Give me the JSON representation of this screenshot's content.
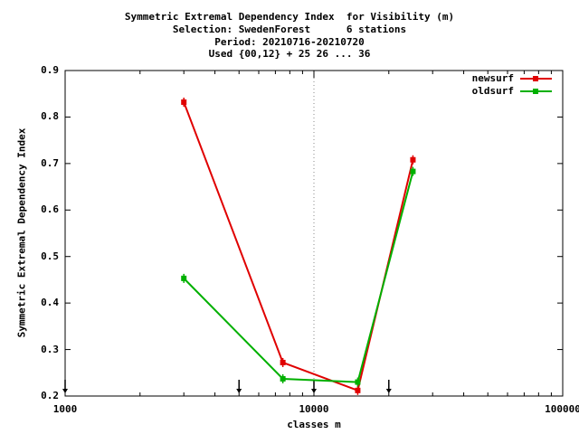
{
  "title_lines": [
    "Symmetric Extremal Dependency Index  for Visibility (m)",
    "Selection: SwedenForest      6 stations",
    "Period: 20210716-20210720",
    "Used {00,12} + 25 26 ... 36"
  ],
  "chart_data": {
    "type": "line",
    "title": "Symmetric Extremal Dependency Index  for Visibility (m)",
    "xlabel": "classes m",
    "ylabel": "Symmetric Extremal Dependency Index",
    "x_scale": "log",
    "xlim": [
      1000,
      100000
    ],
    "ylim": [
      0.2,
      0.9
    ],
    "x_ticks": [
      1000,
      10000,
      100000
    ],
    "x_tick_labels": [
      "1000",
      "10000",
      "100000"
    ],
    "y_ticks": [
      0.2,
      0.3,
      0.4,
      0.5,
      0.6,
      0.7,
      0.8,
      0.9
    ],
    "y_tick_labels": [
      "0.2",
      "0.3",
      "0.4",
      "0.5",
      "0.6",
      "0.7",
      "0.8",
      "0.9"
    ],
    "grid": "dotted at x=10000 and y=0.9",
    "legend_position": "top-right",
    "threshold_markers_x": [
      1000,
      5000,
      10000,
      20000
    ],
    "series": [
      {
        "name": "newsurf",
        "color": "#e00000",
        "x": [
          3000,
          7500,
          15000,
          25000
        ],
        "y": [
          0.832,
          0.272,
          0.212,
          0.708
        ]
      },
      {
        "name": "oldsurf",
        "color": "#00b000",
        "x": [
          3000,
          7500,
          15000,
          25000
        ],
        "y": [
          0.453,
          0.237,
          0.23,
          0.683
        ]
      }
    ]
  }
}
